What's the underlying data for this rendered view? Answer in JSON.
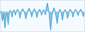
{
  "chart_data": {
    "type": "area",
    "color": "#3a9fd0",
    "tick_labels": false,
    "grid": false,
    "xlim": [
      0,
      129
    ],
    "ylim": [
      -4.29,
      2.38
    ],
    "values": [
      0.3,
      0.1,
      -0.8,
      -2.0,
      -1.5,
      -0.5,
      -1.8,
      -3.5,
      -2.0,
      -0.8,
      -0.3,
      -1.5,
      -2.8,
      -1.2,
      -0.2,
      0.3,
      0.1,
      -0.5,
      -1.2,
      -0.4,
      0.2,
      0.4,
      -0.2,
      -0.8,
      -0.3,
      0.1,
      0.5,
      0.3,
      -0.1,
      -0.6,
      -1.4,
      -0.8,
      -0.2,
      0.3,
      0.6,
      0.4,
      0.1,
      -0.3,
      -0.9,
      -1.6,
      -1.0,
      -0.4,
      0.1,
      0.5,
      0.7,
      0.4,
      0.0,
      -0.5,
      -1.2,
      -0.6,
      0.0,
      0.4,
      0.6,
      0.3,
      -0.1,
      -0.6,
      -1.3,
      -0.7,
      -0.1,
      0.3,
      0.5,
      0.3,
      -0.2,
      -0.8,
      -0.4,
      0.1,
      0.4,
      0.2,
      -0.3,
      -0.7,
      0.5,
      1.2,
      1.8,
      1.0,
      0.2,
      -0.8,
      -2.8,
      -4.0,
      -2.5,
      -1.0,
      -0.2,
      0.4,
      0.8,
      0.4,
      -0.2,
      -0.9,
      -1.8,
      -2.6,
      -1.5,
      -0.5,
      0.1,
      0.5,
      0.3,
      -0.3,
      -1.0,
      -1.8,
      -1.0,
      -0.3,
      0.2,
      0.4,
      0.2,
      -0.2,
      -0.8,
      -1.5,
      -0.9,
      -0.2,
      0.3,
      0.5,
      0.3,
      -0.1,
      -0.5,
      -1.2,
      -0.6,
      -0.1,
      0.3,
      0.5,
      0.3,
      0.0,
      -0.4,
      -0.9,
      -0.4,
      0.0,
      0.3,
      0.5,
      0.2,
      -0.2,
      -0.6,
      -1.1,
      -0.5,
      0.1
    ]
  }
}
